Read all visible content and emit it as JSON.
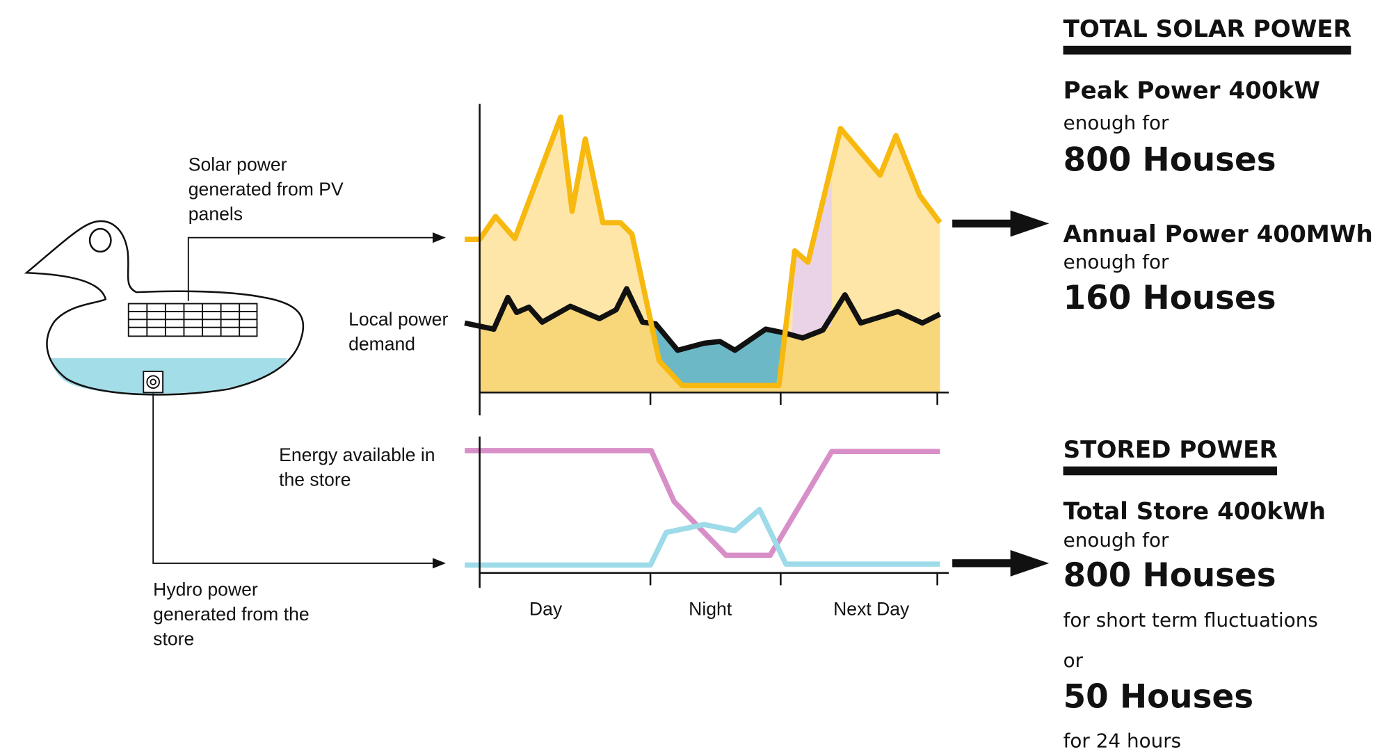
{
  "labels": {
    "solar": [
      "Solar power",
      "generated from PV",
      "panels"
    ],
    "demand": [
      "Local power",
      "demand"
    ],
    "store": [
      "Energy available in",
      "the store"
    ],
    "hydro": [
      "Hydro power",
      "generated from the",
      "store"
    ]
  },
  "x_axis": [
    "Day",
    "Night",
    "Next Day"
  ],
  "solar_panel": {
    "title": "TOTAL SOLAR POWER",
    "peak": "Peak Power 400kW",
    "peak_note": "enough for",
    "peak_houses": "800 Houses",
    "annual": "Annual Power 400MWh",
    "annual_note": "enough for",
    "annual_houses": "160 Houses"
  },
  "stored_panel": {
    "title": "STORED POWER",
    "total": "Total Store 400kWh",
    "total_note": "enough for",
    "total_houses": "800 Houses",
    "short_term": "for short term fluctuations",
    "or": "or",
    "day_houses": "50 Houses",
    "day_note": "for 24 hours"
  }
}
